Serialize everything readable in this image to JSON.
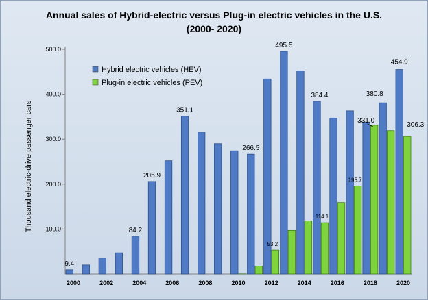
{
  "chart_data": {
    "type": "bar",
    "title": "Annual sales of Hybrid-electric  versus Plug-in electric vehicles in the U.S.",
    "subtitle": "(2000- 2020)",
    "xlabel": "",
    "ylabel": "Thousand electric-drive passenger cars",
    "ylim": [
      0,
      500
    ],
    "y_ticks": [
      "100.0",
      "200.0",
      "300.0",
      "400.0",
      "500.0"
    ],
    "grid": false,
    "legend_position": "top-left",
    "categories": [
      "2000",
      "2001",
      "2002",
      "2003",
      "2004",
      "2005",
      "2006",
      "2007",
      "2008",
      "2009",
      "2010",
      "2011",
      "2012",
      "2013",
      "2014",
      "2015",
      "2016",
      "2017",
      "2018",
      "2019",
      "2020"
    ],
    "x_tick_labels": [
      "2000",
      "",
      "2002",
      "",
      "2004",
      "",
      "2006",
      "",
      "2008",
      "",
      "2010",
      "",
      "2012",
      "",
      "2014",
      "",
      "2016",
      "",
      "2018",
      "",
      "2020"
    ],
    "series": [
      {
        "name": "Hybrid electric vehicles (HEV)",
        "color": "#4f7ac6",
        "values": [
          9.4,
          20,
          36,
          47,
          84.2,
          205.9,
          252,
          351.1,
          316,
          290,
          274,
          266.5,
          434,
          495.5,
          452,
          384.4,
          347,
          363,
          338,
          380.8,
          454.9
        ]
      },
      {
        "name": "Plug-in electric vehicles (PEV)",
        "color": "#7fd33c",
        "values": [
          0,
          0,
          0,
          0,
          0,
          0,
          0,
          0,
          0,
          0,
          0.3,
          17.7,
          53.2,
          97,
          118,
          114.1,
          159,
          195.7,
          331.0,
          319,
          306.3
        ]
      }
    ],
    "data_labels": [
      {
        "series": 0,
        "index": 0,
        "text": "9.4"
      },
      {
        "series": 0,
        "index": 4,
        "text": "84.2"
      },
      {
        "series": 0,
        "index": 5,
        "text": "205.9"
      },
      {
        "series": 0,
        "index": 7,
        "text": "351.1"
      },
      {
        "series": 0,
        "index": 11,
        "text": "266.5"
      },
      {
        "series": 0,
        "index": 13,
        "text": "495.5"
      },
      {
        "series": 0,
        "index": 15,
        "text": "384.4"
      },
      {
        "series": 0,
        "index": 19,
        "text": "380.8"
      },
      {
        "series": 0,
        "index": 20,
        "text": "454.9"
      },
      {
        "series": 1,
        "index": 12,
        "text": "53.2"
      },
      {
        "series": 1,
        "index": 15,
        "text": "114.1"
      },
      {
        "series": 1,
        "index": 17,
        "text": "195.7"
      },
      {
        "series": 1,
        "index": 18,
        "text": "331.0"
      },
      {
        "series": 1,
        "index": 20,
        "text": "306.3"
      }
    ]
  }
}
